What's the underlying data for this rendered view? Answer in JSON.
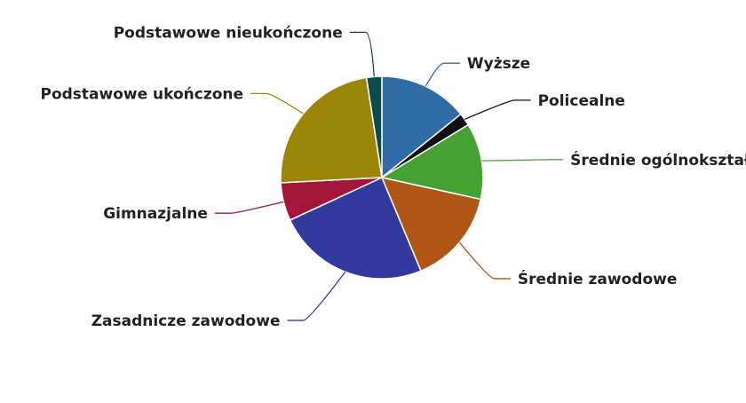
{
  "chart_data": {
    "type": "pie",
    "title": "",
    "slices": [
      {
        "label": "Wyższe",
        "value": 14.0,
        "color": "#2f6ba5"
      },
      {
        "label": "Policealne",
        "value": 2.0,
        "color": "#0f0f0f"
      },
      {
        "label": "Średnie ogólnokształcące",
        "value": 12.0,
        "color": "#45a232"
      },
      {
        "label": "Średnie zawodowe",
        "value": 15.0,
        "color": "#b05614"
      },
      {
        "label": "Zasadnicze zawodowe",
        "value": 24.0,
        "color": "#333a9e"
      },
      {
        "label": "Gimnazjalne",
        "value": 6.0,
        "color": "#a3163a"
      },
      {
        "label": "Podstawowe ukończone",
        "value": 23.0,
        "color": "#9b8609"
      },
      {
        "label": "Podstawowe nieukończone",
        "value": 2.4,
        "color": "#0d4a4a"
      }
    ],
    "start_angle_deg": 0,
    "direction": "clockwise",
    "legend": "none (labels with leader lines)"
  }
}
